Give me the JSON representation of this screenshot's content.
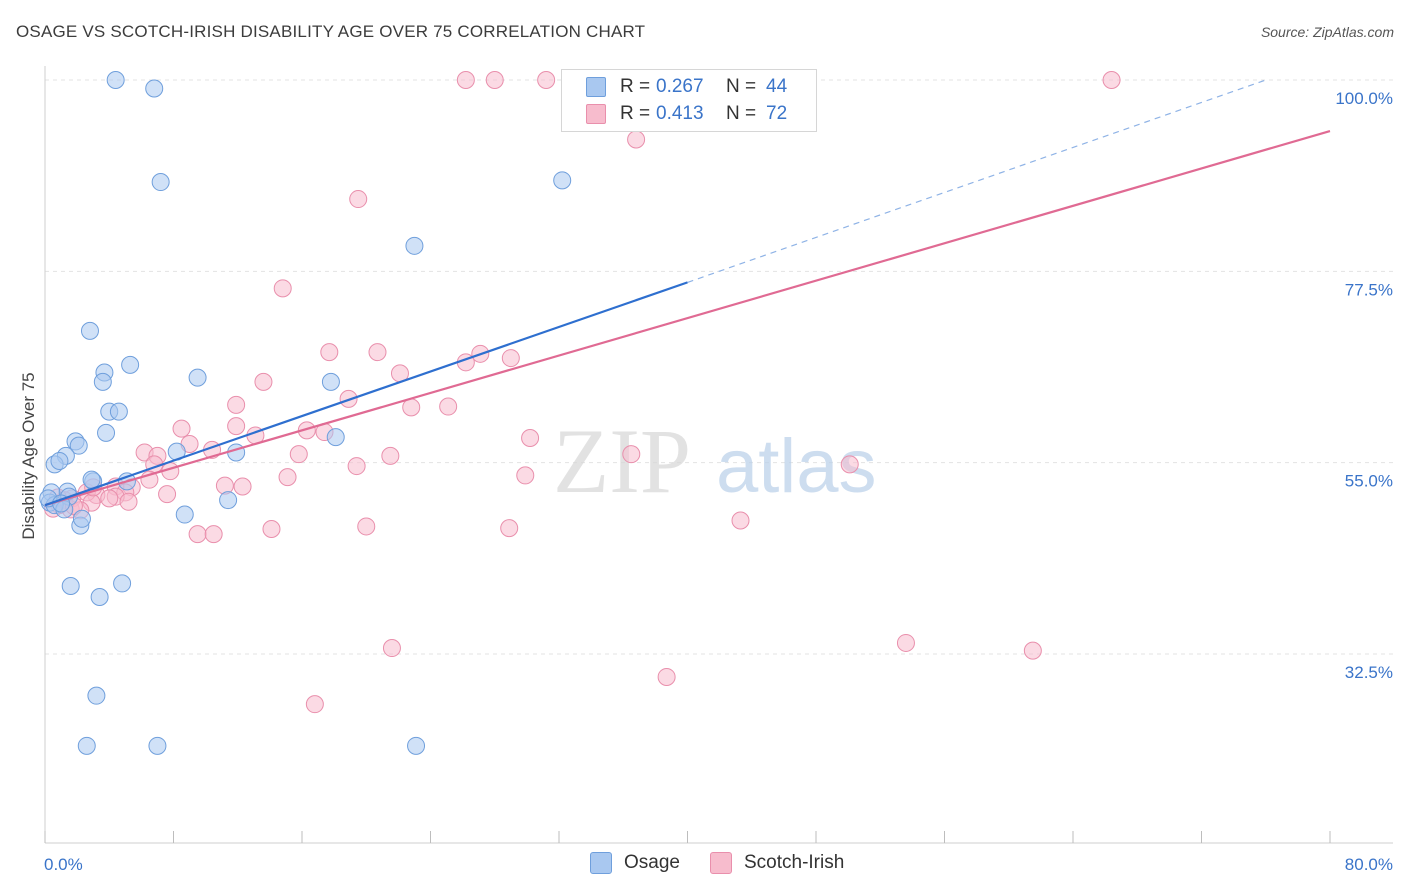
{
  "title": "OSAGE VS SCOTCH-IRISH DISABILITY AGE OVER 75 CORRELATION CHART",
  "source": "Source: ZipAtlas.com",
  "watermark": {
    "part1": "ZIP",
    "part2": "atlas"
  },
  "colors": {
    "osage_fill": "#a9c8f0",
    "osage_stroke": "#6f9fdc",
    "osage_line": "#2e6fcf",
    "scotch_fill": "#f7bccd",
    "scotch_stroke": "#e98fac",
    "scotch_line": "#e06a93",
    "axis_label": "#3a74c9",
    "grid": "#e3e3e3"
  },
  "legend": {
    "rows": [
      {
        "r_label": "R =",
        "r_value": "0.267",
        "n_label": "N =",
        "n_value": "44"
      },
      {
        "r_label": "R =",
        "r_value": "0.413",
        "n_label": "N =",
        "n_value": "72"
      }
    ]
  },
  "bottom_legend": {
    "osage": "Osage",
    "scotch": "Scotch-Irish"
  },
  "chart_data": {
    "type": "scatter",
    "xlabel": "",
    "ylabel": "Disability Age Over 75",
    "xlim": [
      0,
      80
    ],
    "ylim": [
      15,
      101
    ],
    "x_tick_labels": [
      "0.0%",
      "80.0%"
    ],
    "y_ticks": [
      32.5,
      55.0,
      77.5,
      100.0
    ],
    "y_tick_labels": [
      "32.5%",
      "55.0%",
      "77.5%",
      "100.0%"
    ],
    "grid": true,
    "legend_position": "top-center",
    "series": [
      {
        "name": "Osage",
        "r": 0.267,
        "n": 44,
        "trend": {
          "x0": 0,
          "y0": 50.0,
          "x1": 40,
          "y1": 76.2,
          "dashed_to_x": 76,
          "dashed_to_y": 100
        },
        "points": [
          [
            4.4,
            100
          ],
          [
            6.8,
            99
          ],
          [
            7.2,
            88
          ],
          [
            32.2,
            88.2
          ],
          [
            23.0,
            80.5
          ],
          [
            2.8,
            70.5
          ],
          [
            5.3,
            66.5
          ],
          [
            9.5,
            65.0
          ],
          [
            3.7,
            65.6
          ],
          [
            3.6,
            64.5
          ],
          [
            4.0,
            61.0
          ],
          [
            4.6,
            61.0
          ],
          [
            3.8,
            58.5
          ],
          [
            1.9,
            57.5
          ],
          [
            2.1,
            57.0
          ],
          [
            11.9,
            56.2
          ],
          [
            8.2,
            56.3
          ],
          [
            17.8,
            64.5
          ],
          [
            18.1,
            58.0
          ],
          [
            1.3,
            55.8
          ],
          [
            0.6,
            54.8
          ],
          [
            0.9,
            55.2
          ],
          [
            3.0,
            52.8
          ],
          [
            2.9,
            53.0
          ],
          [
            5.1,
            52.8
          ],
          [
            1.4,
            51.6
          ],
          [
            0.4,
            51.5
          ],
          [
            0.3,
            50.3
          ],
          [
            0.6,
            50.0
          ],
          [
            11.4,
            50.6
          ],
          [
            8.7,
            48.9
          ],
          [
            2.2,
            47.6
          ],
          [
            2.3,
            48.4
          ],
          [
            1.5,
            51.0
          ],
          [
            1.2,
            49.5
          ],
          [
            1.6,
            40.5
          ],
          [
            3.4,
            39.2
          ],
          [
            4.8,
            40.8
          ],
          [
            3.2,
            27.6
          ],
          [
            2.6,
            21.7
          ],
          [
            7.0,
            21.7
          ],
          [
            23.1,
            21.7
          ],
          [
            0.2,
            50.8
          ],
          [
            1.0,
            50.2
          ]
        ]
      },
      {
        "name": "Scotch-Irish",
        "r": 0.413,
        "n": 72,
        "trend": {
          "x0": 0,
          "y0": 50.0,
          "x1": 80,
          "y1": 94.0
        },
        "points": [
          [
            26.2,
            100
          ],
          [
            28.0,
            100
          ],
          [
            31.2,
            100
          ],
          [
            37.7,
            100
          ],
          [
            66.4,
            100
          ],
          [
            33.9,
            97.5
          ],
          [
            36.8,
            93.0
          ],
          [
            19.5,
            86.0
          ],
          [
            14.8,
            75.5
          ],
          [
            17.7,
            68.0
          ],
          [
            20.7,
            68.0
          ],
          [
            27.1,
            67.8
          ],
          [
            29.0,
            67.3
          ],
          [
            26.2,
            66.8
          ],
          [
            22.1,
            65.5
          ],
          [
            13.6,
            64.5
          ],
          [
            18.9,
            62.5
          ],
          [
            11.9,
            61.8
          ],
          [
            22.8,
            61.5
          ],
          [
            25.1,
            61.6
          ],
          [
            11.9,
            59.3
          ],
          [
            8.5,
            59.0
          ],
          [
            16.3,
            58.8
          ],
          [
            17.4,
            58.6
          ],
          [
            13.1,
            58.2
          ],
          [
            30.2,
            57.9
          ],
          [
            9.0,
            57.2
          ],
          [
            6.2,
            56.2
          ],
          [
            7.0,
            55.8
          ],
          [
            10.4,
            56.5
          ],
          [
            15.8,
            56.0
          ],
          [
            21.5,
            55.8
          ],
          [
            36.5,
            56.0
          ],
          [
            19.4,
            54.6
          ],
          [
            6.8,
            54.8
          ],
          [
            7.8,
            54.0
          ],
          [
            29.9,
            53.5
          ],
          [
            50.1,
            54.8
          ],
          [
            15.1,
            53.3
          ],
          [
            11.2,
            52.3
          ],
          [
            12.3,
            52.2
          ],
          [
            4.4,
            52.2
          ],
          [
            5.4,
            52.1
          ],
          [
            5.0,
            51.5
          ],
          [
            3.2,
            51.2
          ],
          [
            4.4,
            51.0
          ],
          [
            1.7,
            50.8
          ],
          [
            2.6,
            51.5
          ],
          [
            1.2,
            50.6
          ],
          [
            2.9,
            50.3
          ],
          [
            0.9,
            50.0
          ],
          [
            5.2,
            50.4
          ],
          [
            7.6,
            51.3
          ],
          [
            1.6,
            49.5
          ],
          [
            0.5,
            49.6
          ],
          [
            2.2,
            49.4
          ],
          [
            43.3,
            48.2
          ],
          [
            20.0,
            47.5
          ],
          [
            28.9,
            47.3
          ],
          [
            14.1,
            47.2
          ],
          [
            9.5,
            46.6
          ],
          [
            10.5,
            46.6
          ],
          [
            21.6,
            33.2
          ],
          [
            53.6,
            33.8
          ],
          [
            61.5,
            32.9
          ],
          [
            38.7,
            29.8
          ],
          [
            16.8,
            26.6
          ],
          [
            0.8,
            50.9
          ],
          [
            1.8,
            49.9
          ],
          [
            3.0,
            52.1
          ],
          [
            4.0,
            50.8
          ],
          [
            6.5,
            53.0
          ]
        ]
      }
    ]
  }
}
